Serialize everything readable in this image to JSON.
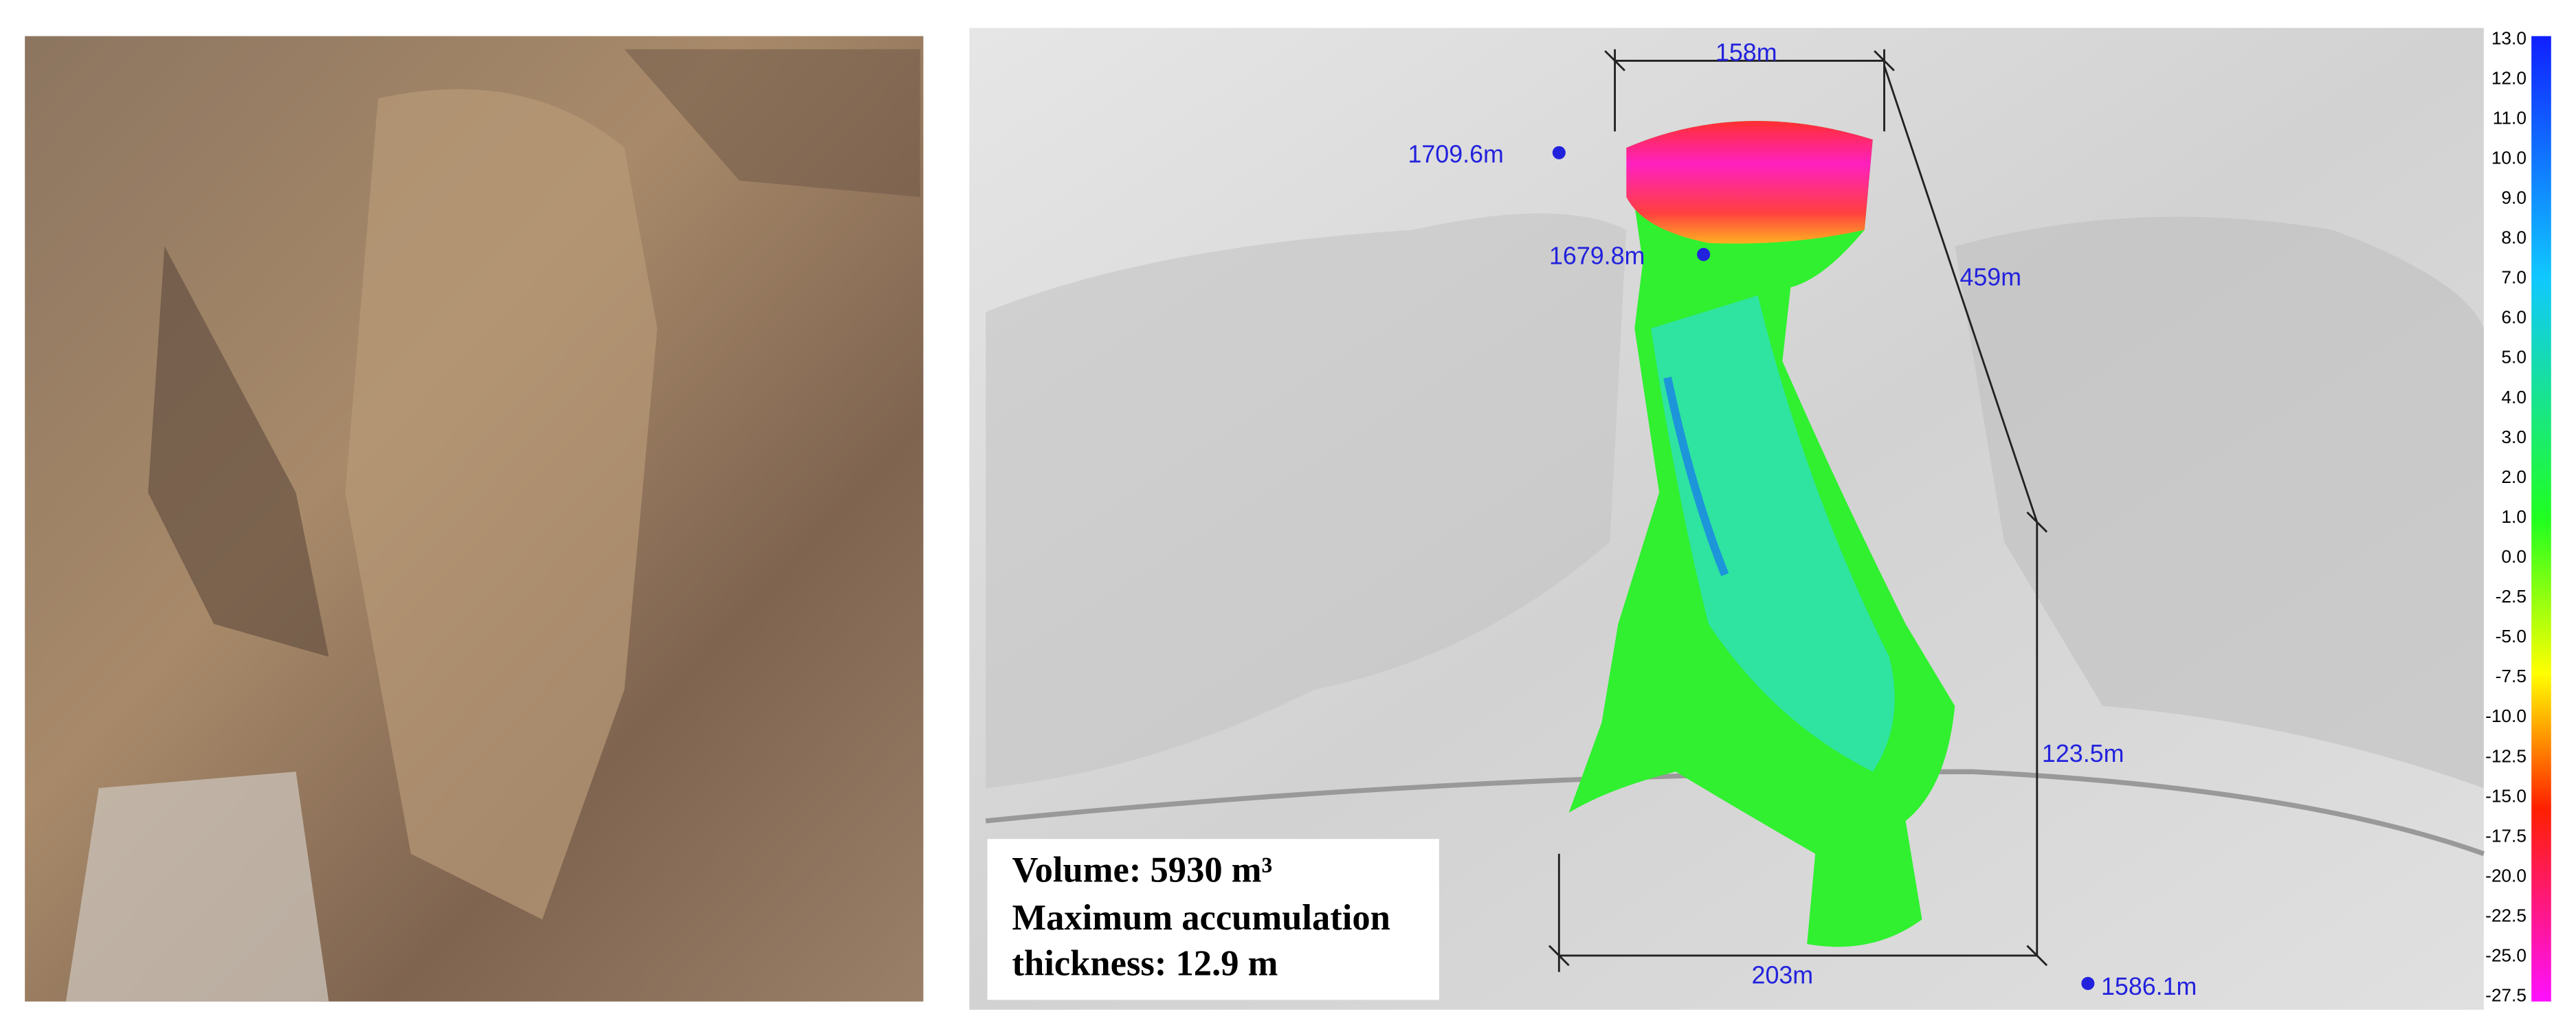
{
  "map": {
    "top_width": "158m",
    "crown_elevation": "1709.6m",
    "head_elevation": "1679.8m",
    "slope_length": "459m",
    "height_drop": "123.5m",
    "bottom_width": "203m",
    "toe_elevation": "1586.1m"
  },
  "info_box": {
    "lines": [
      "Volume: 5930 m³",
      "Maximum accumulation",
      "thickness: 12.9 m"
    ]
  },
  "colorbar": {
    "ticks": [
      "13.0",
      "12.0",
      "11.0",
      "10.0",
      "9.0",
      "8.0",
      "7.0",
      "6.0",
      "5.0",
      "4.0",
      "3.0",
      "2.0",
      "1.0",
      "0.0",
      "-2.5",
      "-5.0",
      "-7.5",
      "-10.0",
      "-12.5",
      "-15.0",
      "-17.5",
      "-20.0",
      "-22.5",
      "-25.0",
      "-27.5"
    ]
  }
}
